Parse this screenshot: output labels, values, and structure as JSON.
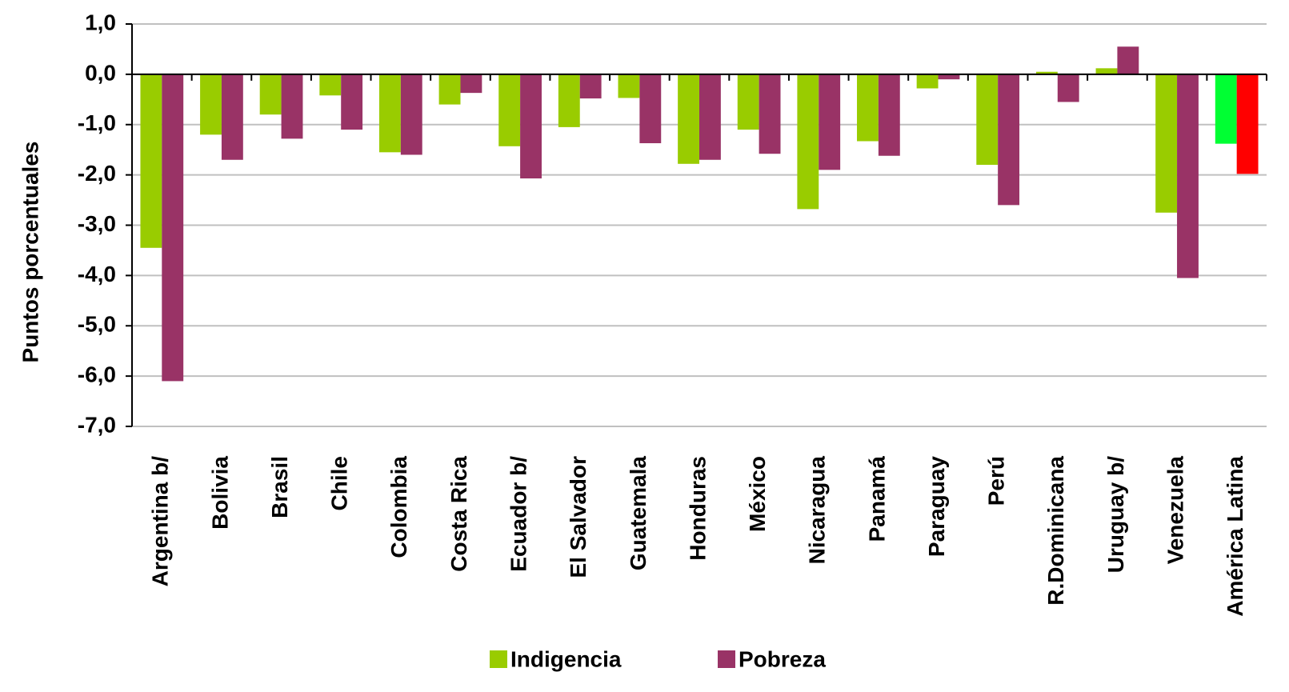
{
  "chart_data": {
    "type": "bar",
    "ylabel": "Puntos porcentuales",
    "categories": [
      "Argentina b/",
      "Bolivia",
      "Brasil",
      "Chile",
      "Colombia",
      "Costa Rica",
      "Ecuador b/",
      "El Salvador",
      "Guatemala",
      "Honduras",
      "México",
      "Nicaragua",
      "Panamá",
      "Paraguay",
      "Perú",
      "R.Dominicana",
      "Uruguay b/",
      "Venezuela",
      "América Latina"
    ],
    "series": [
      {
        "name": "Indigencia",
        "color": "#99cc00",
        "colors": [
          "#99cc00",
          "#99cc00",
          "#99cc00",
          "#99cc00",
          "#99cc00",
          "#99cc00",
          "#99cc00",
          "#99cc00",
          "#99cc00",
          "#99cc00",
          "#99cc00",
          "#99cc00",
          "#99cc00",
          "#99cc00",
          "#99cc00",
          "#99cc00",
          "#99cc00",
          "#99cc00",
          "#00ff33"
        ],
        "values": [
          -3.45,
          -1.2,
          -0.8,
          -0.42,
          -1.55,
          -0.6,
          -1.43,
          -1.05,
          -0.47,
          -1.78,
          -1.1,
          -2.68,
          -1.33,
          -0.28,
          -1.8,
          0.05,
          0.12,
          -2.75,
          -1.38
        ]
      },
      {
        "name": "Pobreza",
        "color": "#993366",
        "colors": [
          "#993366",
          "#993366",
          "#993366",
          "#993366",
          "#993366",
          "#993366",
          "#993366",
          "#993366",
          "#993366",
          "#993366",
          "#993366",
          "#993366",
          "#993366",
          "#993366",
          "#993366",
          "#993366",
          "#993366",
          "#993366",
          "#ff0000"
        ],
        "values": [
          -6.1,
          -1.7,
          -1.28,
          -1.1,
          -1.6,
          -0.37,
          -2.07,
          -0.48,
          -1.37,
          -1.7,
          -1.58,
          -1.9,
          -1.62,
          -0.1,
          -2.6,
          -0.55,
          0.55,
          -4.05,
          -1.98
        ]
      }
    ],
    "ylim": [
      -7,
      1
    ],
    "yticks": [
      {
        "value": 1,
        "label": "1,0"
      },
      {
        "value": 0,
        "label": "0,0"
      },
      {
        "value": -1,
        "label": "-1,0"
      },
      {
        "value": -2,
        "label": "-2,0"
      },
      {
        "value": -3,
        "label": "-3,0"
      },
      {
        "value": -4,
        "label": "-4,0"
      },
      {
        "value": -5,
        "label": "-5,0"
      },
      {
        "value": -6,
        "label": "-6,0"
      },
      {
        "value": -7,
        "label": "-7,0"
      }
    ],
    "grid": true
  }
}
